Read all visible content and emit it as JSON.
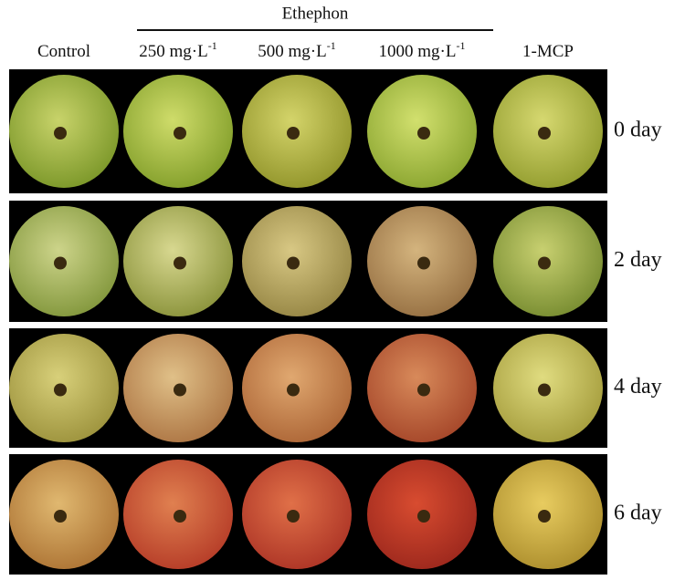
{
  "header": {
    "group": "Ethephon",
    "columns": [
      {
        "text": "Control"
      },
      {
        "text": "250 mg·L",
        "sup": "-1"
      },
      {
        "text": "500 mg·L",
        "sup": "-1"
      },
      {
        "text": "1000 mg·L",
        "sup": "-1"
      },
      {
        "text": "1-MCP"
      }
    ]
  },
  "rows": [
    {
      "label": "0 day"
    },
    {
      "label": "2 day"
    },
    {
      "label": "4 day"
    },
    {
      "label": "6 day"
    }
  ]
}
